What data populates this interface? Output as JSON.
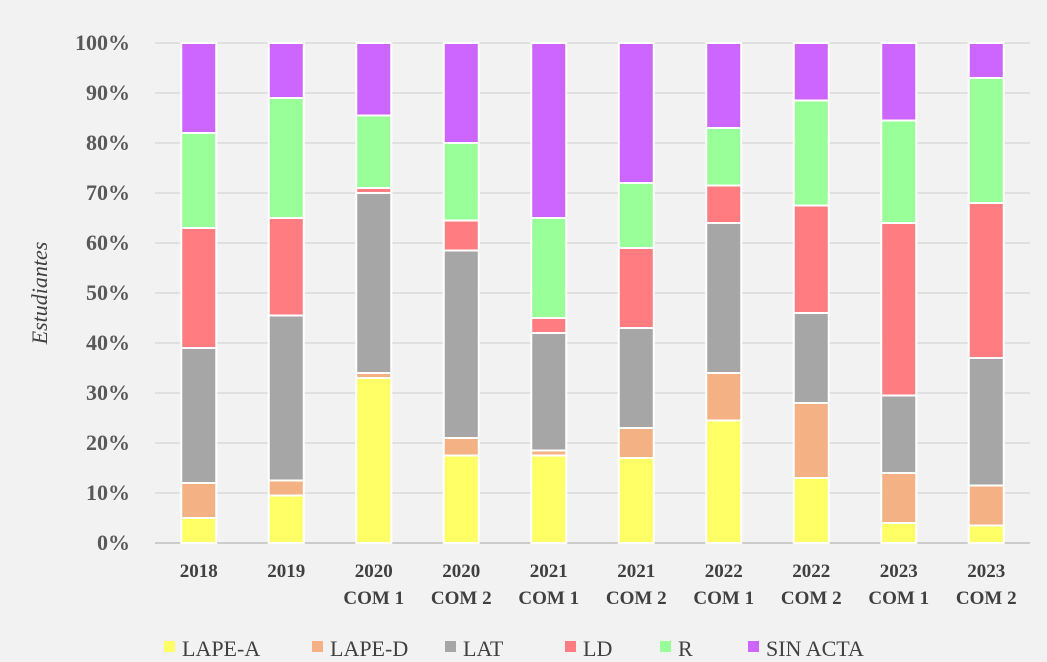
{
  "chart_data": {
    "type": "bar",
    "stacked": true,
    "percent_stacked": true,
    "ylabel": "Estudiantes",
    "ylim": [
      0,
      100
    ],
    "yticks": [
      "0%",
      "10%",
      "20%",
      "30%",
      "40%",
      "50%",
      "60%",
      "70%",
      "80%",
      "90%",
      "100%"
    ],
    "grid": true,
    "legend_position": "bottom",
    "categories": [
      [
        "2018"
      ],
      [
        "2019"
      ],
      [
        "2020",
        "COM 1"
      ],
      [
        "2020",
        "COM 2"
      ],
      [
        "2021",
        "COM 1"
      ],
      [
        "2021",
        "COM 2"
      ],
      [
        "2022",
        "COM 1"
      ],
      [
        "2022",
        "COM 2"
      ],
      [
        "2023",
        "COM 1"
      ],
      [
        "2023",
        "COM 2"
      ]
    ],
    "series": [
      {
        "name": "LAPE-A",
        "color": "#ffff66",
        "values": [
          5,
          9.5,
          33,
          17.5,
          17.5,
          17,
          24.5,
          13,
          4,
          3.5
        ]
      },
      {
        "name": "LAPE-D",
        "color": "#f4b183",
        "values": [
          7,
          3,
          1,
          3.5,
          1,
          6,
          9.5,
          15,
          10,
          8
        ]
      },
      {
        "name": "LAT",
        "color": "#a6a6a6",
        "values": [
          27,
          33,
          36,
          37.5,
          23.5,
          20,
          30,
          18,
          15.5,
          25.5
        ]
      },
      {
        "name": "LD",
        "color": "#ff7c80",
        "values": [
          24,
          19.5,
          1,
          6,
          3,
          16,
          7.5,
          21.5,
          34.5,
          31
        ]
      },
      {
        "name": "R",
        "color": "#99ff99",
        "values": [
          19,
          24,
          14.5,
          15.5,
          20,
          13,
          11.5,
          21,
          20.5,
          25
        ]
      },
      {
        "name": "SIN ACTA",
        "color": "#cc66ff",
        "values": [
          18,
          11,
          14.5,
          20,
          35,
          28,
          17,
          11.5,
          15.5,
          7
        ]
      }
    ]
  }
}
